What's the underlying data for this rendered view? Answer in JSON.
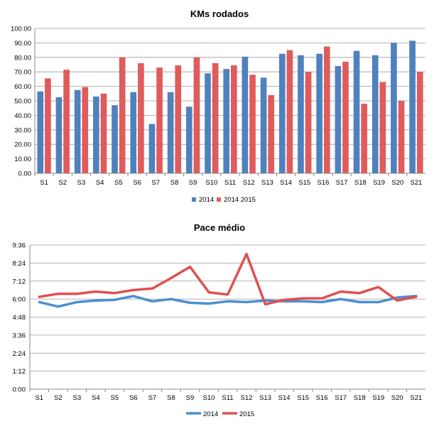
{
  "chart_data": [
    {
      "type": "bar",
      "title": "KMs rodados",
      "categories": [
        "S1",
        "S2",
        "S3",
        "S4",
        "S5",
        "S6",
        "S7",
        "S8",
        "S9",
        "S10",
        "S11",
        "S12",
        "S13",
        "S14",
        "S15",
        "S16",
        "S17",
        "S18",
        "S19",
        "S20",
        "S21"
      ],
      "y_ticks": [
        "0.00",
        "10.00",
        "20.00",
        "30.00",
        "40.00",
        "50.00",
        "60.00",
        "70.00",
        "80.00",
        "90.00",
        "100.00"
      ],
      "ylim": [
        0,
        100
      ],
      "grid": true,
      "legend_labels": [
        "2014",
        "2014 2015"
      ],
      "series": [
        {
          "name": "2014",
          "color": "#4F81BD",
          "values": [
            56.5,
            52.5,
            57.5,
            53,
            47,
            56,
            34,
            56,
            46,
            69,
            72,
            80.5,
            66,
            82.5,
            81.5,
            82.5,
            74,
            84.5,
            81.5,
            90,
            91.5
          ]
        },
        {
          "name": "2015",
          "color": "#E05B5B",
          "values": [
            65.5,
            71.5,
            59.5,
            55,
            80,
            76,
            73,
            74.5,
            80,
            76,
            74.5,
            68,
            54,
            85,
            70,
            87.5,
            77,
            48,
            63,
            50,
            70
          ]
        }
      ]
    },
    {
      "type": "line",
      "title": "Pace médio",
      "categories": [
        "S1",
        "S2",
        "S3",
        "S4",
        "S5",
        "S6",
        "S7",
        "S8",
        "S9",
        "S10",
        "S11",
        "S12",
        "S13",
        "S14",
        "S15",
        "S16",
        "S17",
        "S18",
        "S19",
        "S20",
        "S21"
      ],
      "y_ticks": [
        "0:00",
        "1:12",
        "2:24",
        "3:36",
        "4:48",
        "6:00",
        "7:12",
        "8:24",
        "9:36"
      ],
      "ylim_minutes": [
        0,
        9.6
      ],
      "grid": true,
      "series": [
        {
          "name": "2014",
          "color": "#4A8FD0",
          "values_minutes": [
            5.8,
            5.5,
            5.8,
            5.9,
            5.95,
            6.2,
            5.85,
            6.0,
            5.75,
            5.7,
            5.85,
            5.8,
            5.9,
            5.85,
            5.85,
            5.8,
            6.0,
            5.8,
            5.8,
            6.1,
            6.2
          ]
        },
        {
          "name": "2015",
          "color": "#E05050",
          "values_minutes": [
            6.15,
            6.35,
            6.35,
            6.5,
            6.4,
            6.6,
            6.7,
            7.4,
            8.15,
            6.45,
            6.3,
            9.0,
            5.65,
            5.95,
            6.05,
            6.05,
            6.5,
            6.4,
            6.8,
            5.9,
            6.15
          ]
        }
      ]
    }
  ]
}
